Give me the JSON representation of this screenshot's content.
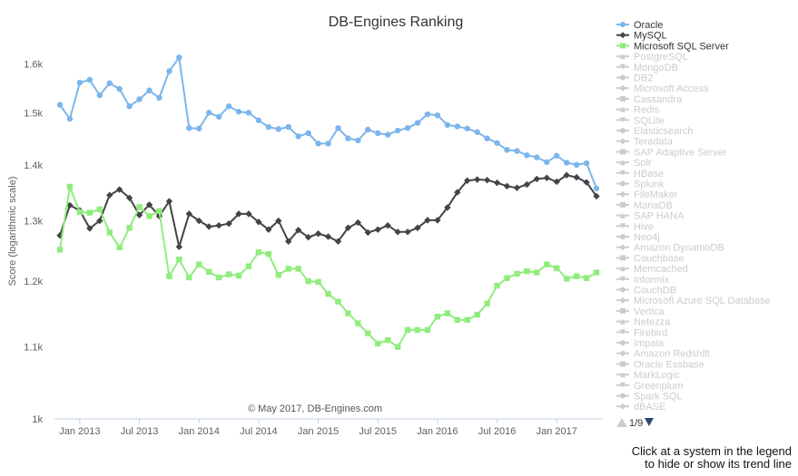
{
  "chart_data": {
    "type": "line",
    "title": "DB-Engines Ranking",
    "ylabel": "Score (logarithmic scale)",
    "y_scale": "log",
    "ylim": [
      1000,
      1650
    ],
    "y_ticks": [
      1000,
      1100,
      1200,
      1300,
      1400,
      1500,
      1600
    ],
    "y_tick_labels": [
      "1k",
      "1.1k",
      "1.2k",
      "1.3k",
      "1.4k",
      "1.5k",
      "1.6k"
    ],
    "x_start": "2012-11",
    "x_tick_labels": [
      "Jan 2013",
      "Jul 2013",
      "Jan 2014",
      "Jul 2014",
      "Jan 2015",
      "Jul 2015",
      "Jan 2016",
      "Jul 2016",
      "Jan 2017"
    ],
    "x_tick_months": [
      "2013-01",
      "2013-07",
      "2014-01",
      "2014-07",
      "2015-01",
      "2015-07",
      "2016-01",
      "2016-07",
      "2017-01"
    ],
    "credit": "© May 2017, DB-Engines.com",
    "grid": false,
    "legend_position": "right",
    "series": [
      {
        "name": "Oracle",
        "color": "#7cb5ec",
        "marker": "circle",
        "values": [
          1516,
          1488,
          1561,
          1567,
          1535,
          1560,
          1548,
          1513,
          1527,
          1545,
          1530,
          1585,
          1614,
          1470,
          1469,
          1500,
          1492,
          1513,
          1502,
          1500,
          1485,
          1472,
          1468,
          1472,
          1454,
          1460,
          1440,
          1440,
          1470,
          1450,
          1446,
          1467,
          1460,
          1457,
          1465,
          1470,
          1480,
          1497,
          1495,
          1476,
          1473,
          1469,
          1462,
          1450,
          1441,
          1428,
          1426,
          1418,
          1414,
          1405,
          1417,
          1404,
          1400,
          1403,
          1357
        ]
      },
      {
        "name": "MySQL",
        "color": "#434348",
        "marker": "diamond",
        "values": [
          1275,
          1327,
          1318,
          1287,
          1300,
          1345,
          1355,
          1340,
          1310,
          1328,
          1308,
          1334,
          1256,
          1312,
          1300,
          1290,
          1292,
          1295,
          1312,
          1312,
          1298,
          1285,
          1300,
          1265,
          1284,
          1272,
          1278,
          1273,
          1265,
          1288,
          1297,
          1280,
          1285,
          1292,
          1281,
          1281,
          1288,
          1301,
          1301,
          1323,
          1350,
          1371,
          1373,
          1372,
          1367,
          1361,
          1358,
          1364,
          1374,
          1376,
          1369,
          1381,
          1377,
          1368,
          1343
        ]
      },
      {
        "name": "Microsoft SQL Server",
        "color": "#90ed7d",
        "marker": "square",
        "values": [
          1251,
          1360,
          1315,
          1314,
          1320,
          1280,
          1255,
          1288,
          1324,
          1308,
          1317,
          1208,
          1235,
          1206,
          1227,
          1215,
          1206,
          1211,
          1209,
          1224,
          1247,
          1244,
          1210,
          1220,
          1220,
          1200,
          1199,
          1180,
          1168,
          1150,
          1135,
          1120,
          1105,
          1110,
          1100,
          1125,
          1125,
          1125,
          1145,
          1150,
          1140,
          1140,
          1148,
          1165,
          1193,
          1205,
          1212,
          1216,
          1214,
          1227,
          1221,
          1204,
          1208,
          1205,
          1214
        ]
      }
    ]
  },
  "legend": {
    "items": [
      {
        "label": "Oracle",
        "marker": "circle",
        "active": true,
        "color": "#7cb5ec"
      },
      {
        "label": "MySQL",
        "marker": "diamond",
        "active": true,
        "color": "#434348"
      },
      {
        "label": "Microsoft SQL Server",
        "marker": "square",
        "active": true,
        "color": "#90ed7d"
      },
      {
        "label": "PostgreSQL",
        "marker": "triangle",
        "active": false
      },
      {
        "label": "MongoDB",
        "marker": "triangle-down",
        "active": false
      },
      {
        "label": "DB2",
        "marker": "circle",
        "active": false
      },
      {
        "label": "Microsoft Access",
        "marker": "diamond",
        "active": false
      },
      {
        "label": "Cassandra",
        "marker": "square",
        "active": false
      },
      {
        "label": "Redis",
        "marker": "triangle",
        "active": false
      },
      {
        "label": "SQLite",
        "marker": "triangle-down",
        "active": false
      },
      {
        "label": "Elasticsearch",
        "marker": "circle",
        "active": false
      },
      {
        "label": "Teradata",
        "marker": "diamond",
        "active": false
      },
      {
        "label": "SAP Adaptive Server",
        "marker": "square",
        "active": false
      },
      {
        "label": "Solr",
        "marker": "triangle",
        "active": false
      },
      {
        "label": "HBase",
        "marker": "triangle-down",
        "active": false
      },
      {
        "label": "Splunk",
        "marker": "circle",
        "active": false
      },
      {
        "label": "FileMaker",
        "marker": "diamond",
        "active": false
      },
      {
        "label": "MariaDB",
        "marker": "square",
        "active": false
      },
      {
        "label": "SAP HANA",
        "marker": "triangle",
        "active": false
      },
      {
        "label": "Hive",
        "marker": "triangle-down",
        "active": false
      },
      {
        "label": "Neo4j",
        "marker": "circle",
        "active": false
      },
      {
        "label": "Amazon DynamoDB",
        "marker": "diamond",
        "active": false
      },
      {
        "label": "Couchbase",
        "marker": "square",
        "active": false
      },
      {
        "label": "Memcached",
        "marker": "triangle",
        "active": false
      },
      {
        "label": "Informix",
        "marker": "triangle-down",
        "active": false
      },
      {
        "label": "CouchDB",
        "marker": "circle",
        "active": false
      },
      {
        "label": "Microsoft Azure SQL Database",
        "marker": "diamond",
        "active": false
      },
      {
        "label": "Vertica",
        "marker": "square",
        "active": false
      },
      {
        "label": "Netezza",
        "marker": "triangle",
        "active": false
      },
      {
        "label": "Firebird",
        "marker": "triangle-down",
        "active": false
      },
      {
        "label": "Impala",
        "marker": "circle",
        "active": false
      },
      {
        "label": "Amazon Redshift",
        "marker": "diamond",
        "active": false
      },
      {
        "label": "Oracle Essbase",
        "marker": "square",
        "active": false
      },
      {
        "label": "MarkLogic",
        "marker": "triangle",
        "active": false
      },
      {
        "label": "Greenplum",
        "marker": "triangle-down",
        "active": false
      },
      {
        "label": "Spark SQL",
        "marker": "circle",
        "active": false
      },
      {
        "label": "dBASE",
        "marker": "diamond",
        "active": false
      }
    ],
    "inactive_color": "#cccccc",
    "page_label": "1/9"
  },
  "footnote": {
    "line1": "Click at a system in the legend",
    "line2": "to hide or show its trend line"
  }
}
